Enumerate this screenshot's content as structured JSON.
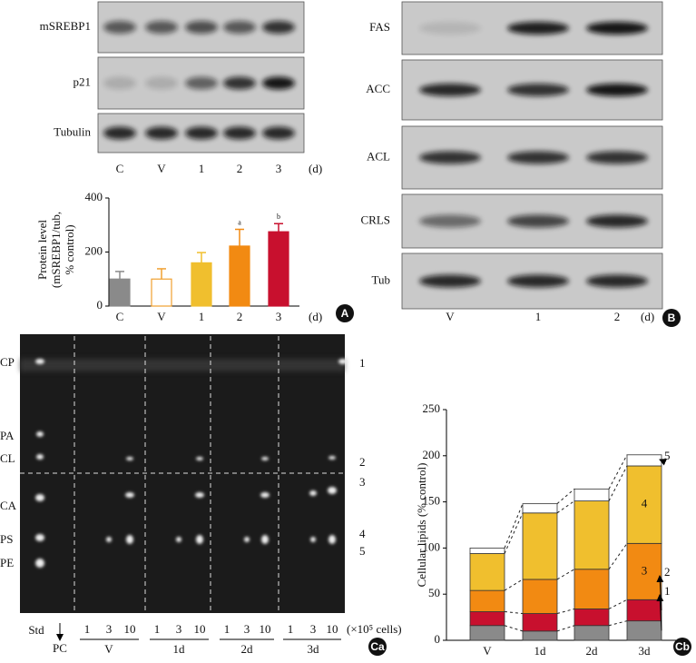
{
  "blots_a": {
    "rows": [
      "mSREBP1",
      "p21",
      "Tubulin"
    ],
    "lanes": [
      "C",
      "V",
      "1",
      "2",
      "3"
    ],
    "unit": "(d)"
  },
  "blots_b": {
    "rows": [
      "FAS",
      "ACC",
      "ACL",
      "CRLS",
      "Tub"
    ],
    "lanes": [
      "V",
      "1",
      "2"
    ],
    "unit": "(d)",
    "badge": "B"
  },
  "tlc": {
    "left_labels": [
      "CP",
      "PA",
      "CL",
      "CA",
      "PS",
      "PE"
    ],
    "right_labels": [
      "1",
      "2",
      "3",
      "4",
      "5"
    ],
    "std": "Std",
    "pc": "PC",
    "groups": [
      {
        "name": "V",
        "lanes": [
          "1",
          "3",
          "10"
        ]
      },
      {
        "name": "1d",
        "lanes": [
          "1",
          "3",
          "10"
        ]
      },
      {
        "name": "2d",
        "lanes": [
          "1",
          "3",
          "10"
        ]
      },
      {
        "name": "3d",
        "lanes": [
          "1",
          "3",
          "10"
        ]
      }
    ],
    "unit": "(×10⁵ cells)",
    "badge": "Ca"
  },
  "chart_data": [
    {
      "type": "bar",
      "badge": "A",
      "y_label": [
        "Protein level",
        "(mSREBP1/tub,",
        "% control)"
      ],
      "categories": [
        "C",
        "V",
        "1",
        "2",
        "3"
      ],
      "x_unit": "(d)",
      "values": [
        100,
        100,
        160,
        222,
        275
      ],
      "errors": [
        28,
        38,
        38,
        62,
        30
      ],
      "annotations": [
        null,
        null,
        null,
        "a",
        "b"
      ],
      "colors": [
        "#8a8a8a",
        "#ffffff",
        "#f0bf2e",
        "#f28a12",
        "#c8102e"
      ],
      "edge_colors": [
        "#8a8a8a",
        "#f0a030",
        "#f0bf2e",
        "#f28a12",
        "#c8102e"
      ],
      "ylim": [
        0,
        400
      ],
      "yticks": [
        0,
        200,
        400
      ]
    },
    {
      "type": "stacked_bar",
      "badge": "Cb",
      "y_label": "Cellular lipids (% control)",
      "categories": [
        "V",
        "1d",
        "2d",
        "3d"
      ],
      "series": [
        {
          "name": "1",
          "color": "#8a8a8a",
          "values": [
            16,
            10,
            16,
            21
          ]
        },
        {
          "name": "2",
          "color": "#c8102e",
          "values": [
            15,
            19,
            18,
            23
          ]
        },
        {
          "name": "3",
          "color": "#f28a12",
          "values": [
            23,
            37,
            43,
            61
          ]
        },
        {
          "name": "4",
          "color": "#f0bf2e",
          "values": [
            40,
            72,
            74,
            84
          ]
        },
        {
          "name": "5",
          "color": "#ffffff",
          "values": [
            6,
            10,
            13,
            12
          ]
        }
      ],
      "ylim": [
        0,
        250
      ],
      "yticks": [
        0,
        50,
        100,
        150,
        200,
        250
      ]
    }
  ]
}
